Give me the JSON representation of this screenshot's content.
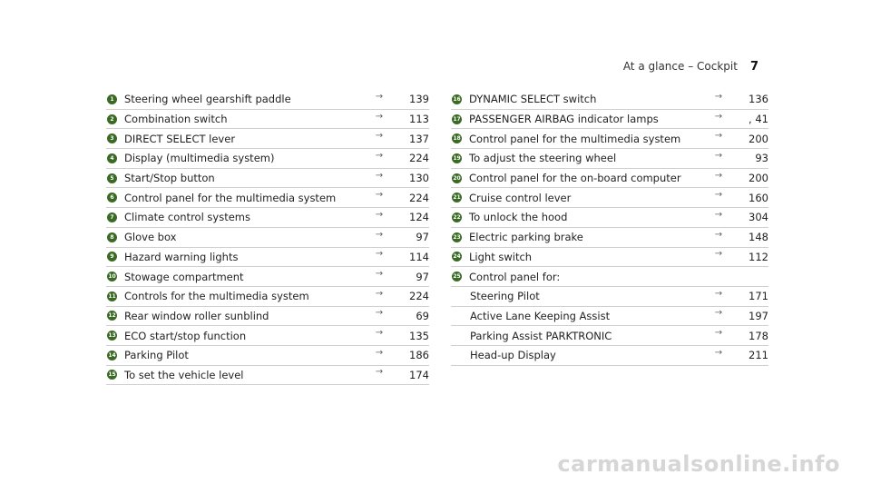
{
  "header": {
    "section": "At a glance – Cockpit",
    "page": "7"
  },
  "left": [
    {
      "num": "1",
      "label": "Steering wheel gearshift paddle",
      "arrow": "→",
      "page": "139"
    },
    {
      "num": "2",
      "label": "Combination switch",
      "arrow": "→",
      "page": "113"
    },
    {
      "num": "3",
      "label": "DIRECT SELECT lever",
      "arrow": "→",
      "page": "137"
    },
    {
      "num": "4",
      "label": "Display (multimedia system)",
      "arrow": "→",
      "page": "224"
    },
    {
      "num": "5",
      "label": "Start/Stop button",
      "arrow": "→",
      "page": "130"
    },
    {
      "num": "6",
      "label": "Control panel for the multimedia system",
      "arrow": "→",
      "page": "224"
    },
    {
      "num": "7",
      "label": "Climate control systems",
      "arrow": "→",
      "page": "124"
    },
    {
      "num": "8",
      "label": "Glove box",
      "arrow": "→",
      "page": "97"
    },
    {
      "num": "9",
      "label": "Hazard warning lights",
      "arrow": "→",
      "page": "114"
    },
    {
      "num": "10",
      "label": "Stowage compartment",
      "arrow": "→",
      "page": "97"
    },
    {
      "num": "11",
      "label": "Controls for the multimedia system",
      "arrow": "→",
      "page": "224"
    },
    {
      "num": "12",
      "label": "Rear window roller sunblind",
      "arrow": "→",
      "page": "69"
    },
    {
      "num": "13",
      "label": "ECO start/stop function",
      "arrow": "→",
      "page": "135"
    },
    {
      "num": "14",
      "label": "Parking Pilot",
      "arrow": "→",
      "page": "186"
    },
    {
      "num": "15",
      "label": "To set the vehicle level",
      "arrow": "→",
      "page": "174"
    }
  ],
  "right": [
    {
      "num": "16",
      "label": "DYNAMIC SELECT switch",
      "arrow": "→",
      "page": "136"
    },
    {
      "num": "17",
      "label": "PASSENGER AIRBAG indicator lamps",
      "arrow": "→",
      "page": ", 41"
    },
    {
      "num": "18",
      "label": "Control panel for the multimedia system",
      "arrow": "→",
      "page": "200"
    },
    {
      "num": "19",
      "label": "To adjust the steering wheel",
      "arrow": "→",
      "page": "93"
    },
    {
      "num": "20",
      "label": "Control panel for the on-board computer",
      "arrow": "→",
      "page": "200"
    },
    {
      "num": "21",
      "label": "Cruise control lever",
      "arrow": "→",
      "page": "160"
    },
    {
      "num": "22",
      "label": "To unlock the hood",
      "arrow": "→",
      "page": "304"
    },
    {
      "num": "23",
      "label": "Electric parking brake",
      "arrow": "→",
      "page": "148"
    },
    {
      "num": "24",
      "label": "Light switch",
      "arrow": "→",
      "page": "112"
    },
    {
      "num": "25",
      "label": "Control panel for:",
      "arrow": "",
      "page": ""
    },
    {
      "num": "",
      "label": "Steering Pilot",
      "arrow": "→",
      "page": "171"
    },
    {
      "num": "",
      "label": "Active Lane Keeping Assist",
      "arrow": "→",
      "page": "197"
    },
    {
      "num": "",
      "label": "Parking Assist PARKTRONIC",
      "arrow": "→",
      "page": "178"
    },
    {
      "num": "",
      "label": "Head-up Display",
      "arrow": "→",
      "page": "211"
    }
  ],
  "watermark": "carmanualsonline.info"
}
